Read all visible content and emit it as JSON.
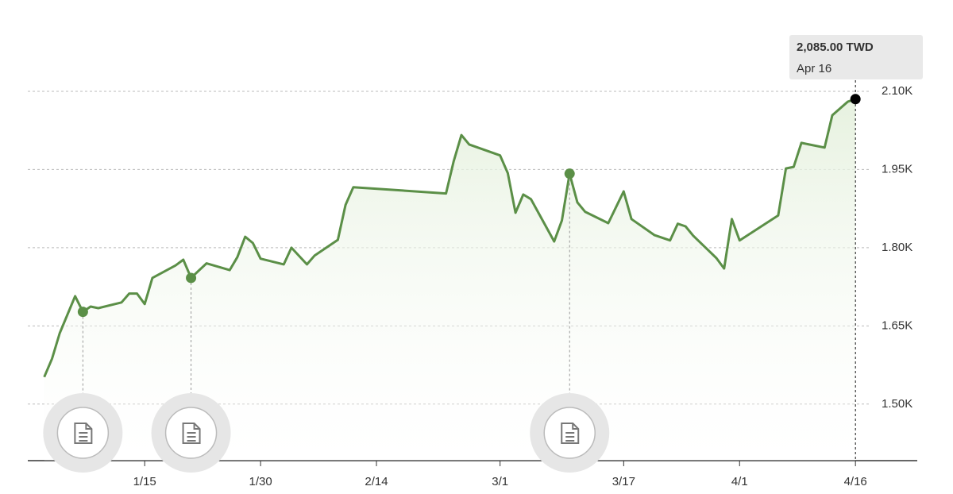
{
  "chart_data": {
    "type": "area-line",
    "x": [
      "1/2",
      "1/3",
      "1/4",
      "1/6",
      "1/7",
      "1/8",
      "1/9",
      "1/12",
      "1/13",
      "1/14",
      "1/15",
      "1/16",
      "1/19",
      "1/20",
      "1/21",
      "1/23",
      "1/26",
      "1/27",
      "1/28",
      "1/29",
      "1/30",
      "2/2",
      "2/3",
      "2/5",
      "2/6",
      "2/9",
      "2/10",
      "2/11",
      "2/23",
      "2/24",
      "2/25",
      "2/26",
      "3/1",
      "3/2",
      "3/3",
      "3/4",
      "3/5",
      "3/8",
      "3/9",
      "3/10",
      "3/11",
      "3/12",
      "3/15",
      "3/17",
      "3/18",
      "3/21",
      "3/23",
      "3/24",
      "3/25",
      "3/26",
      "3/29",
      "3/30",
      "3/31",
      "4/1",
      "4/6",
      "4/7",
      "4/8",
      "4/9",
      "4/12",
      "4/13",
      "4/15",
      "4/16"
    ],
    "series": [
      {
        "color": "#5b8f47",
        "values": [
          1552,
          1587,
          1636,
          1707,
          1677,
          1687,
          1684,
          1695,
          1712,
          1712,
          1692,
          1742,
          1766,
          1777,
          1742,
          1770,
          1757,
          1782,
          1821,
          1809,
          1779,
          1768,
          1800,
          1768,
          1785,
          1815,
          1882,
          1916,
          1904,
          1966,
          2016,
          1998,
          1977,
          1943,
          1867,
          1902,
          1893,
          1812,
          1852,
          1942,
          1887,
          1869,
          1847,
          1908,
          1855,
          1824,
          1814,
          1846,
          1841,
          1823,
          1780,
          1760,
          1855,
          1814,
          1862,
          1952,
          1955,
          2001,
          1992,
          2054,
          2080,
          2085
        ]
      }
    ],
    "xlim": [
      "1/1",
      "4/24"
    ],
    "xticks": [
      "1/15",
      "1/30",
      "2/14",
      "3/1",
      "3/17",
      "4/1",
      "4/16"
    ],
    "ylim": [
      1390,
      2170
    ],
    "yticks": [
      {
        "value": 1500,
        "label": "1.50K"
      },
      {
        "value": 1650,
        "label": "1.65K"
      },
      {
        "value": 1800,
        "label": "1.80K"
      },
      {
        "value": 1950,
        "label": "1.95K"
      },
      {
        "value": 2100,
        "label": "2.10K"
      }
    ],
    "grid": true,
    "annotations": [
      {
        "x": "1/7"
      },
      {
        "x": "1/21"
      },
      {
        "x": "3/10"
      }
    ],
    "tooltip": {
      "label": "2,085.00 TWD",
      "date": "Apr 16"
    }
  }
}
